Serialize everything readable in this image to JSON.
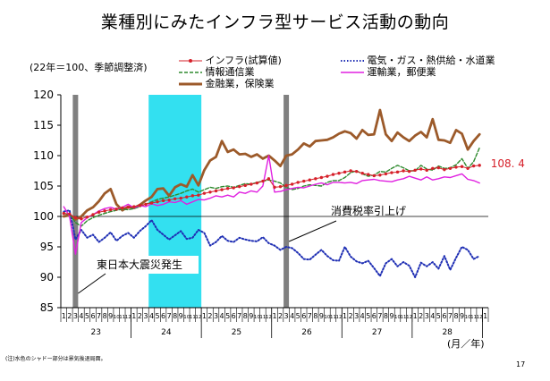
{
  "title": "業種別にみたインフラ型サービス活動の動向",
  "base_note": "(22年＝100、季節調整済)",
  "footnote": "(注)水色のシャドー部分は景気後退局面。",
  "page_number": "17",
  "colors": {
    "infra": "#d6202a",
    "utilities": "#1f2fb4",
    "telecom": "#2e8a2e",
    "transport": "#e020e0",
    "finance": "#9c5a2a",
    "recession_shade": "#33e0f0",
    "event_bar": "#808080"
  },
  "annotations": {
    "earthquake": "東日本大震災発生",
    "tax": "消費税率引上げ",
    "last_value": "108. 4"
  },
  "chart_data": {
    "type": "line",
    "title": "業種別にみたインフラ型サービス活動の動向",
    "xlabel": "(月／年)",
    "ylabel": "",
    "ylim": [
      85,
      120
    ],
    "yticks": [
      85,
      90,
      95,
      100,
      105,
      110,
      115,
      120
    ],
    "grid": false,
    "legend_position": "top",
    "x_month_labels": [
      "1",
      "2",
      "3",
      "4",
      "5",
      "6",
      "7",
      "8",
      "9",
      "10",
      "11",
      "12",
      "1",
      "2",
      "3",
      "4",
      "5",
      "6",
      "7",
      "8",
      "9",
      "10",
      "11",
      "12",
      "1",
      "2",
      "3",
      "4",
      "5",
      "6",
      "7",
      "8",
      "9",
      "10",
      "11",
      "12",
      "1",
      "2",
      "3",
      "4",
      "5",
      "6",
      "7",
      "8",
      "9",
      "10",
      "11",
      "12",
      "1",
      "2",
      "3",
      "4",
      "5",
      "6",
      "7",
      "8",
      "9",
      "10",
      "11",
      "12",
      "1",
      "2",
      "3",
      "4",
      "5",
      "6",
      "7",
      "8",
      "9",
      "10",
      "11",
      "12",
      "1"
    ],
    "year_labels": [
      {
        "label": "23",
        "start_index": 0,
        "end_index": 11
      },
      {
        "label": "24",
        "start_index": 12,
        "end_index": 23
      },
      {
        "label": "25",
        "start_index": 24,
        "end_index": 35
      },
      {
        "label": "26",
        "start_index": 36,
        "end_index": 47
      },
      {
        "label": "27",
        "start_index": 48,
        "end_index": 59
      },
      {
        "label": "28",
        "start_index": 60,
        "end_index": 71
      }
    ],
    "shaded_periods": [
      {
        "start_index": 15,
        "end_index": 23
      }
    ],
    "event_markers": [
      {
        "index": 2
      },
      {
        "index": 38
      }
    ],
    "series": [
      {
        "name": "インフラ(試算値)",
        "key": "infra",
        "style": "marker-line",
        "values": [
          100.5,
          100.4,
          99.8,
          99.6,
          99.9,
          100.3,
          100.7,
          100.9,
          101.1,
          101.2,
          101.4,
          101.5,
          101.6,
          101.8,
          102.0,
          102.2,
          102.4,
          102.6,
          102.7,
          102.9,
          103.0,
          103.2,
          103.4,
          103.5,
          103.8,
          104.0,
          104.2,
          104.4,
          104.6,
          104.7,
          104.9,
          105.1,
          105.3,
          105.5,
          105.8,
          106.2,
          104.8,
          104.9,
          105.1,
          105.3,
          105.6,
          105.8,
          106.0,
          106.2,
          106.4,
          106.6,
          106.9,
          107.1,
          107.3,
          107.5,
          107.4,
          107.1,
          106.9,
          106.7,
          106.8,
          107.0,
          107.2,
          107.3,
          107.5,
          107.4,
          107.6,
          107.8,
          107.6,
          107.9,
          108.0,
          107.7,
          107.9,
          108.1,
          108.2,
          107.9,
          108.3,
          108.4
        ]
      },
      {
        "name": "電気・ガス・熱供給・水道業",
        "key": "utilities",
        "style": "dotted",
        "values": [
          100.8,
          101.0,
          96.2,
          97.8,
          96.5,
          97.0,
          95.8,
          96.5,
          97.4,
          96.0,
          96.8,
          97.3,
          96.5,
          97.6,
          98.4,
          99.4,
          97.8,
          97.0,
          96.2,
          96.9,
          97.6,
          96.3,
          96.5,
          97.8,
          97.3,
          95.2,
          95.8,
          96.8,
          96.0,
          95.8,
          96.5,
          96.2,
          96.0,
          95.9,
          96.6,
          95.6,
          95.2,
          94.5,
          95.0,
          94.8,
          94.0,
          93.0,
          92.9,
          93.7,
          94.5,
          93.5,
          92.8,
          92.7,
          95.0,
          93.4,
          92.6,
          92.3,
          92.7,
          91.5,
          90.2,
          92.3,
          93.0,
          91.8,
          92.5,
          91.9,
          90.0,
          92.4,
          91.8,
          92.5,
          91.4,
          93.5,
          91.2,
          93.2,
          95.0,
          94.5,
          93.0,
          93.5
        ]
      },
      {
        "name": "情報通信業",
        "key": "telecom",
        "style": "dashed",
        "values": [
          100.5,
          100.3,
          99.0,
          98.4,
          99.3,
          99.8,
          100.2,
          100.5,
          100.8,
          101.0,
          101.2,
          101.1,
          101.3,
          101.6,
          102.0,
          102.4,
          102.8,
          103.0,
          103.2,
          103.5,
          103.8,
          104.2,
          104.5,
          104.0,
          104.4,
          104.8,
          104.6,
          104.9,
          105.0,
          104.8,
          105.1,
          105.4,
          105.3,
          105.6,
          105.8,
          106.0,
          105.8,
          105.5,
          104.8,
          104.4,
          104.6,
          105.0,
          105.2,
          105.1,
          105.0,
          105.6,
          105.9,
          105.9,
          106.4,
          107.2,
          107.5,
          107.0,
          106.6,
          106.8,
          107.4,
          107.3,
          107.9,
          108.4,
          108.0,
          107.5,
          107.5,
          108.4,
          107.8,
          107.6,
          108.3,
          107.9,
          108.0,
          108.5,
          109.5,
          107.9,
          109.0,
          111.3
        ]
      },
      {
        "name": "運輸業，郵便業",
        "key": "transport",
        "style": "solid",
        "values": [
          101.6,
          100.0,
          93.8,
          99.0,
          99.8,
          100.3,
          100.9,
          101.3,
          101.5,
          101.2,
          101.5,
          102.0,
          101.4,
          101.8,
          101.6,
          102.1,
          101.8,
          102.0,
          102.4,
          102.3,
          102.6,
          102.0,
          102.4,
          102.8,
          102.7,
          103.0,
          103.4,
          103.2,
          103.5,
          103.2,
          104.0,
          103.8,
          104.2,
          104.0,
          105.0,
          110.0,
          104.0,
          104.1,
          104.4,
          104.6,
          104.8,
          104.7,
          105.0,
          105.3,
          105.5,
          105.2,
          105.6,
          105.6,
          105.5,
          105.6,
          105.4,
          105.9,
          106.0,
          106.1,
          105.9,
          105.8,
          105.7,
          106.0,
          106.2,
          106.6,
          106.3,
          106.0,
          106.5,
          106.0,
          106.2,
          106.5,
          106.4,
          106.7,
          107.0,
          106.1,
          105.9,
          105.5
        ]
      },
      {
        "name": "金融業，保険業",
        "key": "finance",
        "style": "thick",
        "values": [
          100.0,
          100.2,
          99.5,
          100.0,
          101.0,
          101.5,
          102.5,
          103.8,
          104.5,
          102.0,
          101.0,
          101.6,
          101.4,
          101.9,
          102.6,
          103.2,
          104.5,
          104.6,
          103.4,
          104.8,
          105.3,
          104.9,
          106.8,
          105.1,
          107.6,
          109.2,
          109.8,
          112.4,
          110.6,
          111.0,
          110.2,
          110.3,
          109.8,
          110.2,
          109.5,
          110.0,
          109.2,
          108.3,
          110.0,
          110.2,
          111.0,
          112.0,
          111.5,
          112.4,
          112.5,
          112.6,
          113.0,
          113.6,
          114.0,
          113.7,
          112.8,
          114.2,
          113.4,
          113.5,
          117.5,
          113.5,
          112.4,
          113.8,
          113.0,
          112.4,
          113.3,
          113.9,
          113.0,
          116.0,
          112.6,
          112.5,
          112.1,
          114.2,
          113.6,
          111.0,
          112.4,
          113.5
        ]
      }
    ]
  }
}
